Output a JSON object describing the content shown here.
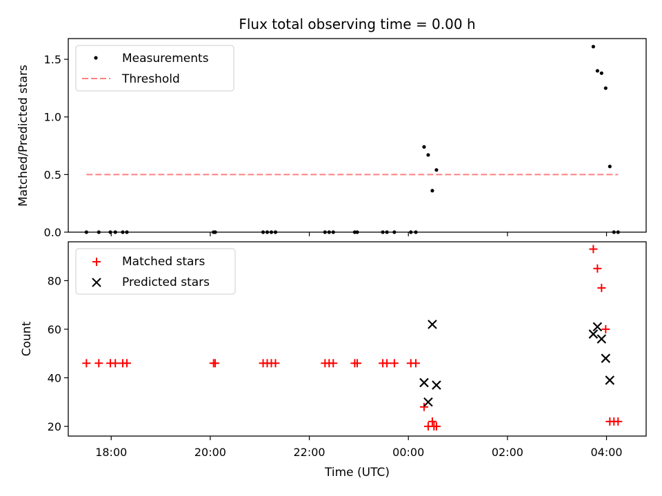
{
  "chart_data": {
    "type": "scatter",
    "title": "Flux total observing time = 0.00 h",
    "xlabel": "Time (UTC)",
    "xlim": [
      "17:08",
      "04:48"
    ],
    "xticks": [
      "18:00",
      "20:00",
      "22:00",
      "00:00",
      "02:00",
      "04:00"
    ],
    "colors": {
      "measurements": "#000000",
      "threshold": "#ff7f7f",
      "matched": "#ff0000",
      "predicted": "#000000"
    },
    "panels": [
      {
        "ylabel": "Matched/Predicted stars",
        "ylim": [
          0,
          1.68
        ],
        "yticks": [
          "0.0",
          "0.5",
          "1.0",
          "1.5"
        ],
        "legend": {
          "position": "upper left",
          "entries": [
            "Measurements",
            "Threshold"
          ]
        },
        "series": [
          {
            "name": "Measurements",
            "kind": "scatter",
            "marker": "dot",
            "points": [
              [
                "17:30",
                0
              ],
              [
                "17:45",
                0
              ],
              [
                "17:59",
                0
              ],
              [
                "18:05",
                0
              ],
              [
                "18:14",
                0
              ],
              [
                "18:19",
                0
              ],
              [
                "20:04",
                0
              ],
              [
                "20:06",
                0
              ],
              [
                "21:04",
                0
              ],
              [
                "21:09",
                0
              ],
              [
                "21:14",
                0
              ],
              [
                "21:19",
                0
              ],
              [
                "22:19",
                0
              ],
              [
                "22:24",
                0
              ],
              [
                "22:29",
                0
              ],
              [
                "22:55",
                0
              ],
              [
                "22:58",
                0
              ],
              [
                "23:29",
                0
              ],
              [
                "23:34",
                0
              ],
              [
                "23:43",
                0
              ],
              [
                "00:03",
                0
              ],
              [
                "00:09",
                0
              ],
              [
                "00:19",
                0.74
              ],
              [
                "00:24",
                0.67
              ],
              [
                "00:29",
                0.36
              ],
              [
                "00:34",
                0.54
              ],
              [
                "03:44",
                1.61
              ],
              [
                "03:49",
                1.4
              ],
              [
                "03:54",
                1.38
              ],
              [
                "03:59",
                1.25
              ],
              [
                "04:04",
                0.57
              ],
              [
                "04:09",
                0
              ],
              [
                "04:14",
                0
              ]
            ]
          },
          {
            "name": "Threshold",
            "kind": "line",
            "style": "dashed",
            "points": [
              [
                "17:30",
                0.5
              ],
              [
                "04:14",
                0.5
              ]
            ]
          }
        ]
      },
      {
        "ylabel": "Count",
        "ylim": [
          16,
          96
        ],
        "yticks": [
          "20",
          "40",
          "60",
          "80"
        ],
        "legend": {
          "position": "upper left",
          "entries": [
            "Matched stars",
            "Predicted stars"
          ]
        },
        "series": [
          {
            "name": "Matched stars",
            "kind": "scatter",
            "marker": "plus",
            "points": [
              [
                "17:30",
                46
              ],
              [
                "17:45",
                46
              ],
              [
                "17:59",
                46
              ],
              [
                "18:05",
                46
              ],
              [
                "18:14",
                46
              ],
              [
                "18:19",
                46
              ],
              [
                "20:04",
                46
              ],
              [
                "20:06",
                46
              ],
              [
                "21:04",
                46
              ],
              [
                "21:09",
                46
              ],
              [
                "21:14",
                46
              ],
              [
                "21:19",
                46
              ],
              [
                "22:19",
                46
              ],
              [
                "22:24",
                46
              ],
              [
                "22:29",
                46
              ],
              [
                "22:55",
                46
              ],
              [
                "22:58",
                46
              ],
              [
                "23:29",
                46
              ],
              [
                "23:34",
                46
              ],
              [
                "23:43",
                46
              ],
              [
                "00:03",
                46
              ],
              [
                "00:09",
                46
              ],
              [
                "00:19",
                28
              ],
              [
                "00:24",
                20
              ],
              [
                "00:29",
                22
              ],
              [
                "00:31",
                20
              ],
              [
                "00:34",
                20
              ],
              [
                "03:44",
                93
              ],
              [
                "03:49",
                85
              ],
              [
                "03:54",
                77
              ],
              [
                "03:59",
                60
              ],
              [
                "04:04",
                22
              ],
              [
                "04:09",
                22
              ],
              [
                "04:14",
                22
              ]
            ]
          },
          {
            "name": "Predicted stars",
            "kind": "scatter",
            "marker": "x",
            "points": [
              [
                "00:19",
                38
              ],
              [
                "00:24",
                30
              ],
              [
                "00:29",
                62
              ],
              [
                "00:34",
                37
              ],
              [
                "03:44",
                58
              ],
              [
                "03:49",
                61
              ],
              [
                "03:54",
                56
              ],
              [
                "03:59",
                48
              ],
              [
                "04:04",
                39
              ]
            ]
          }
        ]
      }
    ]
  }
}
